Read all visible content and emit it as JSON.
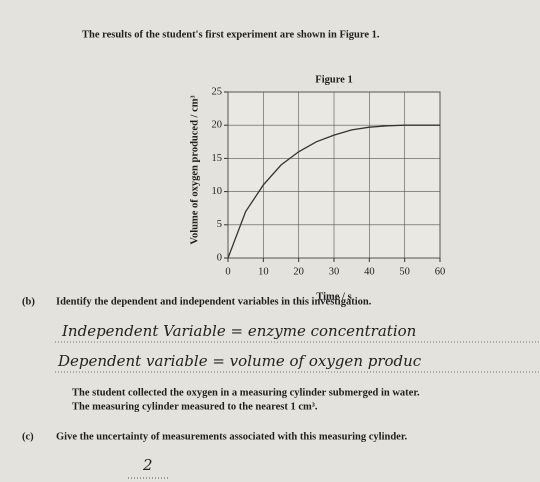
{
  "intro": "The results of the student's first experiment are shown in Figure 1.",
  "chart_data": {
    "type": "line",
    "title": "Figure 1",
    "x_label": "Time / s",
    "y_label": "Volume of oxygen produced / cm³",
    "x": [
      0,
      5,
      10,
      15,
      20,
      25,
      30,
      35,
      40,
      45,
      50,
      55,
      60
    ],
    "series": [
      {
        "color": "#333333",
        "values": [
          0,
          7,
          11,
          14,
          16,
          17.5,
          18.5,
          19.3,
          19.7,
          19.9,
          20,
          20,
          20
        ]
      }
    ],
    "xlim": [
      0,
      60
    ],
    "xticks": [
      0,
      10,
      20,
      30,
      40,
      50,
      60
    ],
    "ylim": [
      0,
      25
    ],
    "yticks": [
      0,
      5,
      10,
      15,
      20,
      25
    ],
    "grid": true
  },
  "question_b": {
    "number": "(b)",
    "text": "Identify the dependent and independent variables in this investigation.",
    "answers": [
      "Independent Variable = enzyme concentration",
      "Dependent variable = volume of oxygen produc"
    ]
  },
  "context": [
    "The student collected the oxygen in a measuring cylinder submerged in water.",
    "The measuring cylinder measured to the nearest 1 cm³."
  ],
  "question_c": {
    "number": "(c)",
    "text": "Give the uncertainty of measurements associated with this measuring cylinder.",
    "answer": "2"
  }
}
